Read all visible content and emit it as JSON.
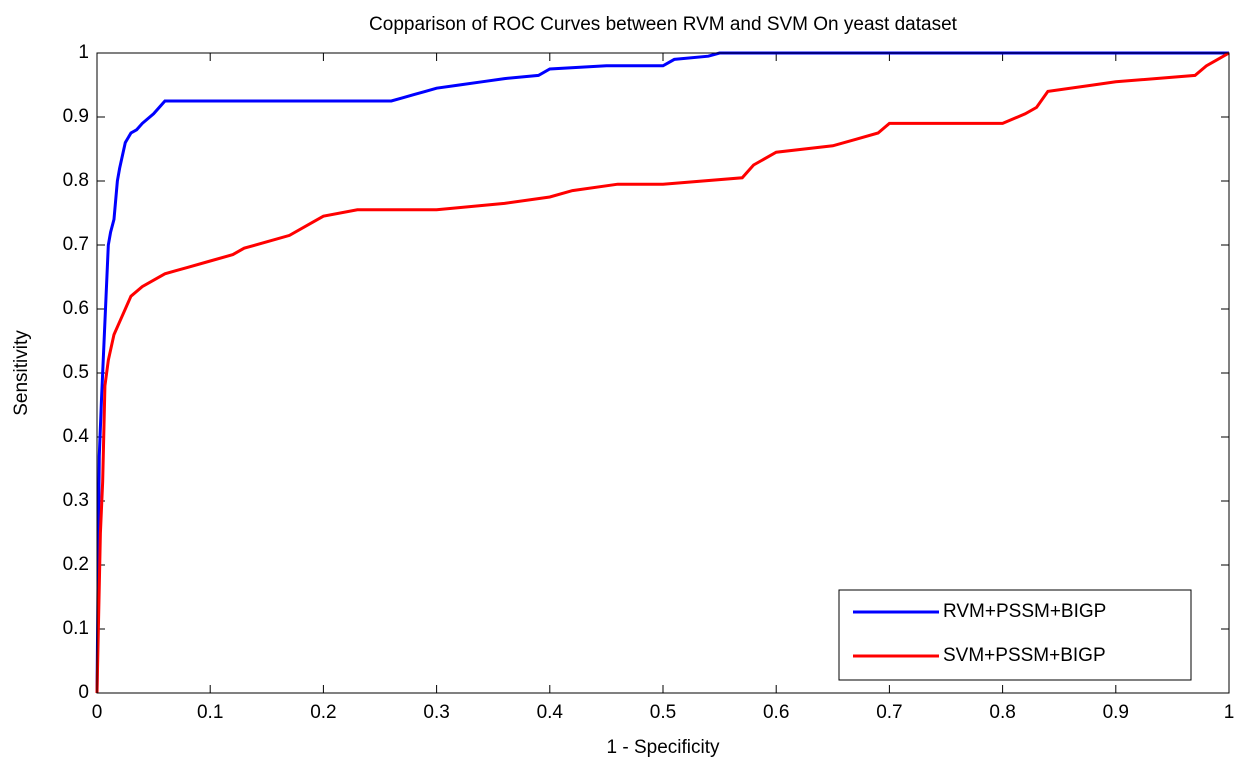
{
  "chart_data": {
    "type": "line",
    "title": "Copparison of ROC Curves between RVM and SVM On yeast dataset",
    "x_label": "1 - Specificity",
    "y_label": "Sensitivity",
    "xlim": [
      0,
      1
    ],
    "ylim": [
      0,
      1
    ],
    "xticks": [
      0,
      0.1,
      0.2,
      0.3,
      0.4,
      0.5,
      0.6,
      0.7,
      0.8,
      0.9,
      1
    ],
    "yticks": [
      0,
      0.1,
      0.2,
      0.3,
      0.4,
      0.5,
      0.6,
      0.7,
      0.8,
      0.9,
      1
    ],
    "grid": false,
    "legend": "lower right",
    "series": [
      {
        "name": "RVM+PSSM+BIGP",
        "color": "#0000ff",
        "x": [
          0,
          0.002,
          0.004,
          0.006,
          0.008,
          0.01,
          0.012,
          0.015,
          0.018,
          0.02,
          0.025,
          0.03,
          0.035,
          0.04,
          0.05,
          0.06,
          0.1,
          0.2,
          0.26,
          0.27,
          0.28,
          0.29,
          0.3,
          0.32,
          0.34,
          0.36,
          0.39,
          0.4,
          0.45,
          0.5,
          0.51,
          0.54,
          0.55,
          1
        ],
        "values": [
          0,
          0.37,
          0.46,
          0.54,
          0.62,
          0.7,
          0.72,
          0.74,
          0.8,
          0.82,
          0.86,
          0.875,
          0.88,
          0.89,
          0.905,
          0.925,
          0.925,
          0.925,
          0.925,
          0.93,
          0.935,
          0.94,
          0.945,
          0.95,
          0.955,
          0.96,
          0.965,
          0.975,
          0.98,
          0.98,
          0.99,
          0.995,
          1,
          1
        ]
      },
      {
        "name": "SVM+PSSM+BIGP",
        "color": "#ff0000",
        "x": [
          0,
          0.003,
          0.005,
          0.007,
          0.01,
          0.015,
          0.02,
          0.025,
          0.03,
          0.04,
          0.05,
          0.06,
          0.07,
          0.08,
          0.1,
          0.12,
          0.13,
          0.15,
          0.17,
          0.19,
          0.2,
          0.23,
          0.3,
          0.36,
          0.4,
          0.42,
          0.46,
          0.5,
          0.57,
          0.58,
          0.6,
          0.65,
          0.67,
          0.69,
          0.7,
          0.8,
          0.82,
          0.83,
          0.84,
          0.88,
          0.9,
          0.97,
          0.98,
          0.99,
          1
        ],
        "values": [
          0,
          0.25,
          0.33,
          0.48,
          0.52,
          0.56,
          0.58,
          0.6,
          0.62,
          0.635,
          0.645,
          0.655,
          0.66,
          0.665,
          0.675,
          0.685,
          0.695,
          0.705,
          0.715,
          0.735,
          0.745,
          0.755,
          0.755,
          0.765,
          0.775,
          0.785,
          0.795,
          0.795,
          0.805,
          0.825,
          0.845,
          0.855,
          0.865,
          0.875,
          0.89,
          0.89,
          0.905,
          0.915,
          0.94,
          0.95,
          0.955,
          0.965,
          0.98,
          0.99,
          1
        ]
      }
    ]
  }
}
